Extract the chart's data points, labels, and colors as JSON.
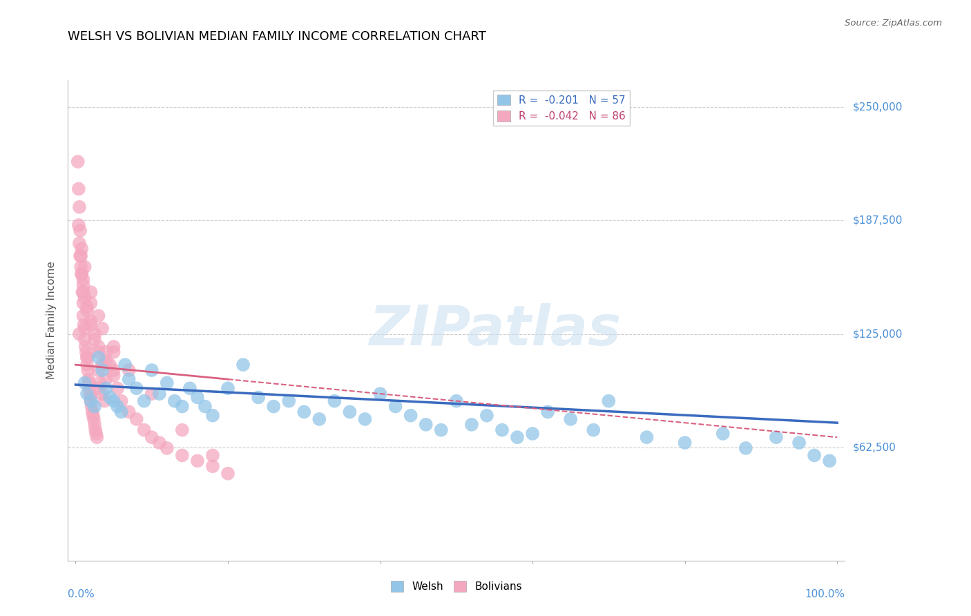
{
  "title": "WELSH VS BOLIVIAN MEDIAN FAMILY INCOME CORRELATION CHART",
  "source": "Source: ZipAtlas.com",
  "ylabel": "Median Family Income",
  "ymin": 0,
  "ymax": 265000,
  "xmin": 0,
  "xmax": 100,
  "welsh_R": -0.201,
  "welsh_N": 57,
  "bolivian_R": -0.042,
  "bolivian_N": 86,
  "welsh_color": "#92c5e8",
  "bolivian_color": "#f4a8c0",
  "welsh_line_color": "#3a6bbf",
  "bolivian_line_color": "#d96080",
  "watermark": "ZIPatlas",
  "welsh_x": [
    1.2,
    1.5,
    2.0,
    2.5,
    3.0,
    3.5,
    4.0,
    4.5,
    5.0,
    5.5,
    6.0,
    6.5,
    7.0,
    8.0,
    9.0,
    10.0,
    11.0,
    12.0,
    13.0,
    14.0,
    15.0,
    16.0,
    17.0,
    18.0,
    20.0,
    22.0,
    24.0,
    26.0,
    28.0,
    30.0,
    32.0,
    34.0,
    36.0,
    38.0,
    40.0,
    42.0,
    44.0,
    46.0,
    48.0,
    50.0,
    52.0,
    54.0,
    56.0,
    58.0,
    60.0,
    62.0,
    65.0,
    68.0,
    70.0,
    75.0,
    80.0,
    85.0,
    88.0,
    92.0,
    95.0,
    97.0,
    99.0
  ],
  "welsh_y": [
    98000,
    92000,
    88000,
    85000,
    112000,
    105000,
    95000,
    90000,
    88000,
    85000,
    82000,
    108000,
    100000,
    95000,
    88000,
    105000,
    92000,
    98000,
    88000,
    85000,
    95000,
    90000,
    85000,
    80000,
    95000,
    108000,
    90000,
    85000,
    88000,
    82000,
    78000,
    88000,
    82000,
    78000,
    92000,
    85000,
    80000,
    75000,
    72000,
    88000,
    75000,
    80000,
    72000,
    68000,
    70000,
    82000,
    78000,
    72000,
    88000,
    68000,
    65000,
    70000,
    62000,
    68000,
    65000,
    58000,
    55000
  ],
  "bolivian_x": [
    0.3,
    0.4,
    0.5,
    0.6,
    0.7,
    0.8,
    0.9,
    1.0,
    1.0,
    1.1,
    1.2,
    1.2,
    1.3,
    1.4,
    1.5,
    1.5,
    1.6,
    1.7,
    1.8,
    1.8,
    1.9,
    2.0,
    2.0,
    2.1,
    2.2,
    2.3,
    2.4,
    2.5,
    2.6,
    2.7,
    2.8,
    3.0,
    3.2,
    3.5,
    3.8,
    4.0,
    4.5,
    5.0,
    5.5,
    6.0,
    7.0,
    8.0,
    9.0,
    10.0,
    11.0,
    12.0,
    14.0,
    16.0,
    18.0,
    20.0,
    0.5,
    0.7,
    1.0,
    1.2,
    1.5,
    2.0,
    2.5,
    3.0,
    3.5,
    4.0,
    0.6,
    0.8,
    1.0,
    1.5,
    2.0,
    2.5,
    3.0,
    4.0,
    5.0,
    0.4,
    0.8,
    1.2,
    2.0,
    3.0,
    5.0,
    1.0,
    2.0,
    3.5,
    5.0,
    7.0,
    10.0,
    14.0,
    18.0,
    0.5,
    1.5,
    3.0
  ],
  "bolivian_y": [
    220000,
    205000,
    195000,
    182000,
    168000,
    158000,
    148000,
    142000,
    135000,
    130000,
    128000,
    122000,
    118000,
    115000,
    112000,
    108000,
    105000,
    100000,
    98000,
    95000,
    92000,
    90000,
    88000,
    85000,
    82000,
    80000,
    78000,
    75000,
    72000,
    70000,
    68000,
    105000,
    98000,
    92000,
    88000,
    115000,
    108000,
    102000,
    95000,
    88000,
    82000,
    78000,
    72000,
    68000,
    65000,
    62000,
    58000,
    55000,
    52000,
    48000,
    175000,
    162000,
    152000,
    145000,
    138000,
    130000,
    122000,
    115000,
    108000,
    100000,
    168000,
    158000,
    148000,
    140000,
    132000,
    125000,
    118000,
    110000,
    105000,
    185000,
    172000,
    162000,
    148000,
    135000,
    118000,
    155000,
    142000,
    128000,
    115000,
    105000,
    92000,
    72000,
    58000,
    125000,
    112000,
    95000
  ]
}
